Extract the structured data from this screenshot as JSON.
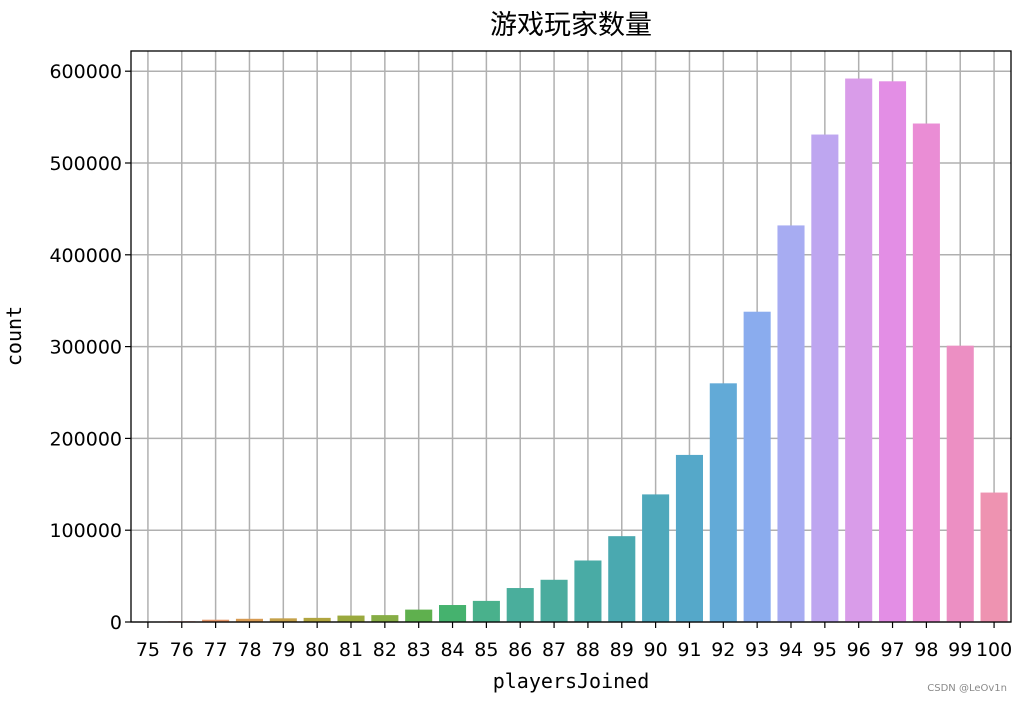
{
  "chart_data": {
    "type": "bar",
    "title": "游戏玩家数量",
    "xlabel": "playersJoined",
    "ylabel": "count",
    "categories": [
      "75",
      "76",
      "77",
      "78",
      "79",
      "80",
      "81",
      "82",
      "83",
      "84",
      "85",
      "86",
      "87",
      "88",
      "89",
      "90",
      "91",
      "92",
      "93",
      "94",
      "95",
      "96",
      "97",
      "98",
      "99",
      "100"
    ],
    "values": [
      500,
      800,
      2500,
      3500,
      4000,
      4500,
      7000,
      7500,
      13500,
      18500,
      23000,
      37000,
      46000,
      67000,
      93500,
      139000,
      182000,
      260000,
      338000,
      432000,
      531000,
      592000,
      589000,
      543000,
      301000,
      141000
    ],
    "yticks": [
      "0",
      "100000",
      "200000",
      "300000",
      "400000",
      "500000",
      "600000"
    ],
    "ylim": [
      0,
      622000
    ],
    "grid": true,
    "legend": "none",
    "colors": [
      "#f48fa0",
      "#f08f86",
      "#e49568",
      "#d79a52",
      "#c4a14a",
      "#b0a53f",
      "#9aa93e",
      "#86ad45",
      "#5fb04e",
      "#45b26e",
      "#49b18c",
      "#4aae9c",
      "#4aac9e",
      "#49aba5",
      "#4aa9b0",
      "#4ea8bb",
      "#55a8c9",
      "#62aad7",
      "#8aacee",
      "#a7acf2",
      "#bea6f0",
      "#d99ce9",
      "#e38ee5",
      "#ea8dd5",
      "#ec8fc3",
      "#ee93b1"
    ]
  },
  "watermark": "CSDN @LeOv1n"
}
